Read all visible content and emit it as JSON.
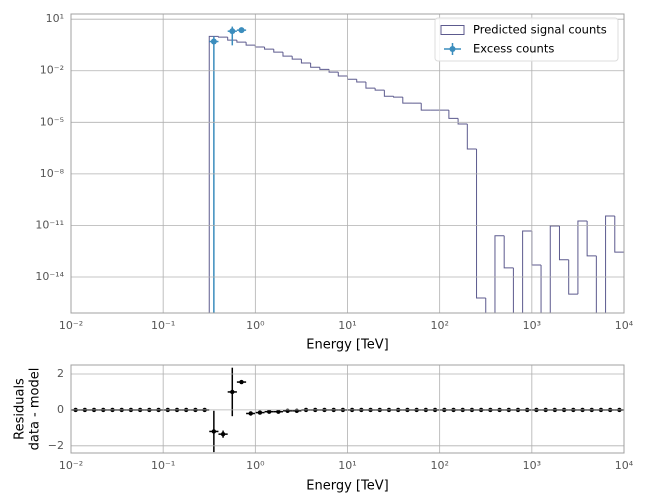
{
  "chart_data": [
    {
      "type": "histogram",
      "xlabel": "Energy [TeV]",
      "xscale": "log",
      "yscale": "log",
      "grid": true,
      "legend": "upper right",
      "xlim": [
        0.01,
        10000
      ],
      "ylim": [
        8e-17,
        20
      ],
      "xticks": [
        {
          "value": 0.01,
          "label": "10⁻²"
        },
        {
          "value": 0.1,
          "label": "10⁻¹"
        },
        {
          "value": 1,
          "label": "10⁰"
        },
        {
          "value": 10,
          "label": "10¹"
        },
        {
          "value": 100,
          "label": "10²"
        },
        {
          "value": 1000,
          "label": "10³"
        },
        {
          "value": 10000,
          "label": "10⁴"
        }
      ],
      "yticks": [
        {
          "value": 10,
          "label": "10¹"
        },
        {
          "value": 0.01,
          "label": "10⁻²"
        },
        {
          "value": 1e-05,
          "label": "10⁻⁵"
        },
        {
          "value": 1e-08,
          "label": "10⁻⁸"
        },
        {
          "value": 1e-11,
          "label": "10⁻¹¹"
        },
        {
          "value": 1e-14,
          "label": "10⁻¹⁴"
        }
      ],
      "series": [
        {
          "name": "Predicted signal counts",
          "type": "step",
          "color": "#5c5a8e",
          "bins": [
            0.3162,
            0.3981,
            0.5012,
            0.631,
            0.7943,
            1,
            1.259,
            1.585,
            1.995,
            2.512,
            3.162,
            3.981,
            5.012,
            6.31,
            7.943,
            10,
            12.59,
            15.85,
            19.95,
            25.12,
            31.62,
            39.81,
            50.12,
            63.1,
            79.43,
            100,
            125.9,
            158.5,
            199.5,
            251.2,
            316.2,
            398.1,
            501.2,
            631,
            794.3,
            1000,
            1259,
            1585,
            1995,
            2512,
            3162,
            3981,
            5012,
            6310,
            7943,
            10000
          ],
          "values": [
            1.0,
            0.9,
            0.6,
            0.46,
            0.31,
            0.24,
            0.18,
            0.12,
            0.071,
            0.047,
            0.028,
            0.016,
            0.012,
            0.0083,
            0.0049,
            0.0032,
            0.0022,
            0.00098,
            0.00074,
            0.00033,
            0.00029,
            0.00013,
            0.00013,
            5.1e-05,
            5.1e-05,
            5.1e-05,
            1.7e-05,
            7.9e-06,
            2.8e-07,
            6e-16,
            0,
            2.5e-12,
            3.4e-14,
            0,
            4.7e-12,
            5e-14,
            0,
            9.3e-12,
            1e-13,
            1e-15,
            1.8e-11,
            1.7e-13,
            0,
            3.5e-11,
            2.8e-13
          ]
        },
        {
          "name": "Excess counts",
          "type": "errorbar",
          "color": "#3b8dbd",
          "x": [
            0.3548,
            0.5623,
            0.7079
          ],
          "values": [
            0.5,
            2,
            2.3
          ],
          "yerr": [
            0.5,
            1.7,
            0.3
          ]
        }
      ]
    },
    {
      "type": "errorbar",
      "xlabel": "Energy [TeV]",
      "ylabel": [
        "Residuals",
        "data - model"
      ],
      "xscale": "log",
      "grid": true,
      "color": "#000000",
      "xlim": [
        0.01,
        10000
      ],
      "ylim": [
        -2.4,
        2.5
      ],
      "xticks": [
        {
          "value": 0.01,
          "label": "10⁻²"
        },
        {
          "value": 0.1,
          "label": "10⁻¹"
        },
        {
          "value": 1,
          "label": "10⁰"
        },
        {
          "value": 10,
          "label": "10¹"
        },
        {
          "value": 100,
          "label": "10²"
        },
        {
          "value": 1000,
          "label": "10³"
        },
        {
          "value": 10000,
          "label": "10⁴"
        }
      ],
      "yticks": [
        {
          "value": -2,
          "label": "−2"
        },
        0,
        2
      ],
      "x": [
        0.01122,
        0.01413,
        0.01778,
        0.02239,
        0.02818,
        0.03548,
        0.04467,
        0.05623,
        0.07079,
        0.08913,
        0.1122,
        0.1413,
        0.1778,
        0.2239,
        0.2818,
        0.3548,
        0.4467,
        0.5623,
        0.7079,
        0.8913,
        1.122,
        1.413,
        1.778,
        2.239,
        2.818,
        3.548,
        4.467,
        5.623,
        7.079,
        8.913,
        11.22,
        14.13,
        17.78,
        22.39,
        28.18,
        35.48,
        44.67,
        56.23,
        70.79,
        89.13,
        112.2,
        141.3,
        177.8,
        223.9,
        281.8,
        354.8,
        446.7,
        562.3,
        707.9,
        891.3,
        1122,
        1413,
        1778,
        2239,
        2818,
        3548,
        4467,
        5623,
        7079,
        8913
      ],
      "values": [
        0,
        0,
        0,
        0,
        0,
        0,
        0,
        0,
        0,
        0,
        0,
        0,
        0,
        0,
        0,
        -1.2,
        -1.35,
        1.0,
        1.55,
        -0.2,
        -0.15,
        -0.1,
        -0.1,
        -0.05,
        -0.05,
        0,
        0,
        0,
        0,
        0,
        0,
        0,
        0,
        0,
        0,
        0,
        0,
        0,
        0,
        0,
        0,
        0,
        0,
        0,
        0,
        0,
        0,
        0,
        0,
        0,
        0,
        0,
        0,
        0,
        0,
        0,
        0,
        0,
        0,
        0
      ],
      "yerr": [
        0,
        0,
        0,
        0,
        0,
        0,
        0,
        0,
        0,
        0,
        0,
        0,
        0,
        0,
        0,
        1.15,
        0.2,
        1.35,
        0.1,
        0.05,
        0.05,
        0.05,
        0.05,
        0.05,
        0.05,
        0,
        0,
        0,
        0,
        0,
        0,
        0,
        0,
        0,
        0,
        0,
        0,
        0,
        0,
        0,
        0,
        0,
        0,
        0,
        0,
        0,
        0,
        0,
        0,
        0,
        0,
        0,
        0,
        0,
        0,
        0,
        0,
        0,
        0,
        0
      ]
    }
  ]
}
